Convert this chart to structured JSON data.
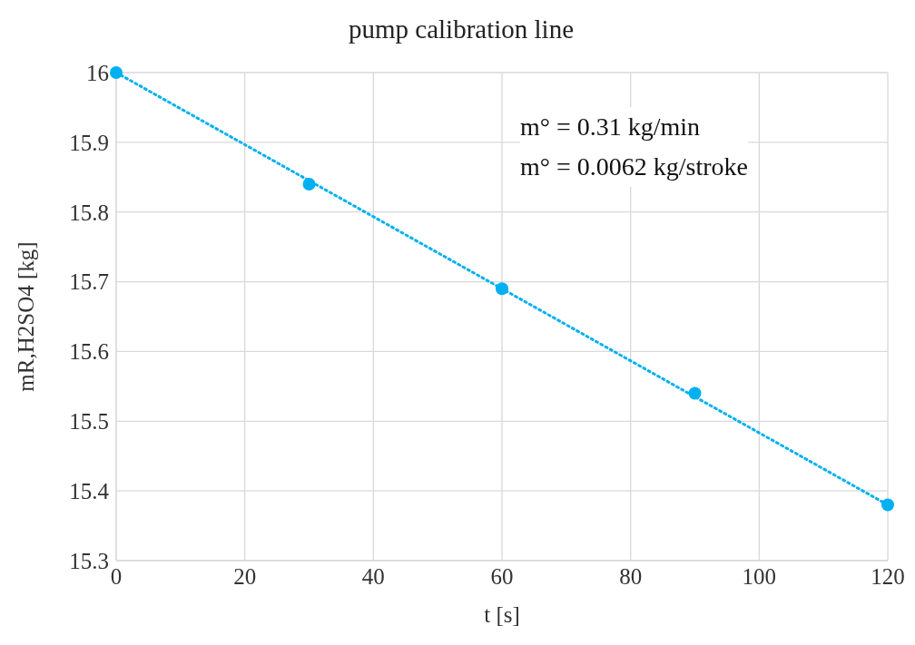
{
  "chart_data": {
    "type": "scatter",
    "title": "pump calibration line",
    "xlabel": "t [s]",
    "ylabel": "mR,H2SO4  [kg]",
    "annotations": [
      "m° = 0.31 kg/min",
      "m° = 0.0062 kg/stroke"
    ],
    "series": [
      {
        "color": "#00b0f0",
        "x": [
          0,
          30,
          60,
          90,
          120
        ],
        "values": [
          16,
          15.84,
          15.69,
          15.54,
          15.38
        ],
        "marker": "circle"
      },
      {
        "type": "line",
        "color": "#00b0f0",
        "x": [
          0,
          120
        ],
        "values": [
          16,
          15.38
        ],
        "line_style": "dotted",
        "marker": "none"
      }
    ],
    "xlim": [
      0,
      120
    ],
    "xticks": [
      0,
      20,
      40,
      60,
      80,
      100,
      120
    ],
    "ylim": [
      15.3,
      16
    ],
    "yticks": [
      15.3,
      15.4,
      15.5,
      15.6,
      15.7,
      15.8,
      15.9,
      16
    ],
    "grid": true
  }
}
